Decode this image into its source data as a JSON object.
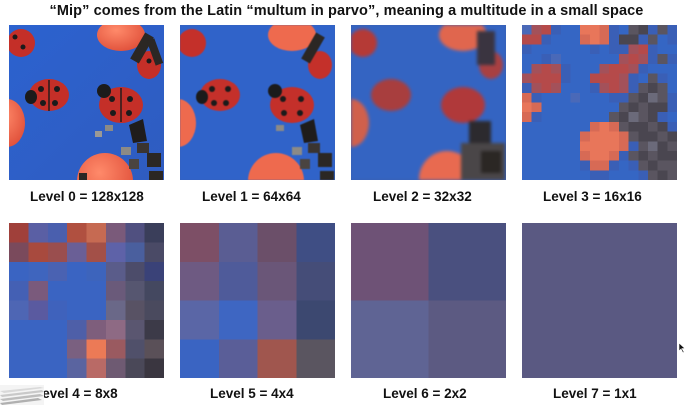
{
  "title": "“Mip” comes from the Latin “multum in parvo”, meaning a multitude in a small space",
  "levels": [
    {
      "caption": "Level 0 = 128x128"
    },
    {
      "caption": "Level 1 = 64x64"
    },
    {
      "caption": "Level 2 = 32x32"
    },
    {
      "caption": "Level 3 = 16x16"
    },
    {
      "caption": "Level 4 = 8x8"
    },
    {
      "caption": "Level 5 = 4x4"
    },
    {
      "caption": "Level 6 = 2x2"
    },
    {
      "caption": "Level 7 = 1x1"
    }
  ],
  "colors": {
    "table_blue": "#3263c8",
    "ladybug_red": "#c8322a",
    "tomato_orange": "#ec6a4e",
    "dark_piece": "#2b2724",
    "gray_piece": "#8c8a86",
    "level5_tl": "#7d4f66",
    "level5_tm": "#5a5d93",
    "level5_tr": "#6b4f69",
    "level5_tr2": "#3f4e84",
    "level6_tl": "#6e5276",
    "level6_tr": "#4a507f",
    "level6_bl": "#5f6494",
    "level6_br": "#5c5a82",
    "level7": "#5a5982"
  },
  "icons": [
    "mouse-cursor-icon",
    "paper-stack-icon"
  ]
}
